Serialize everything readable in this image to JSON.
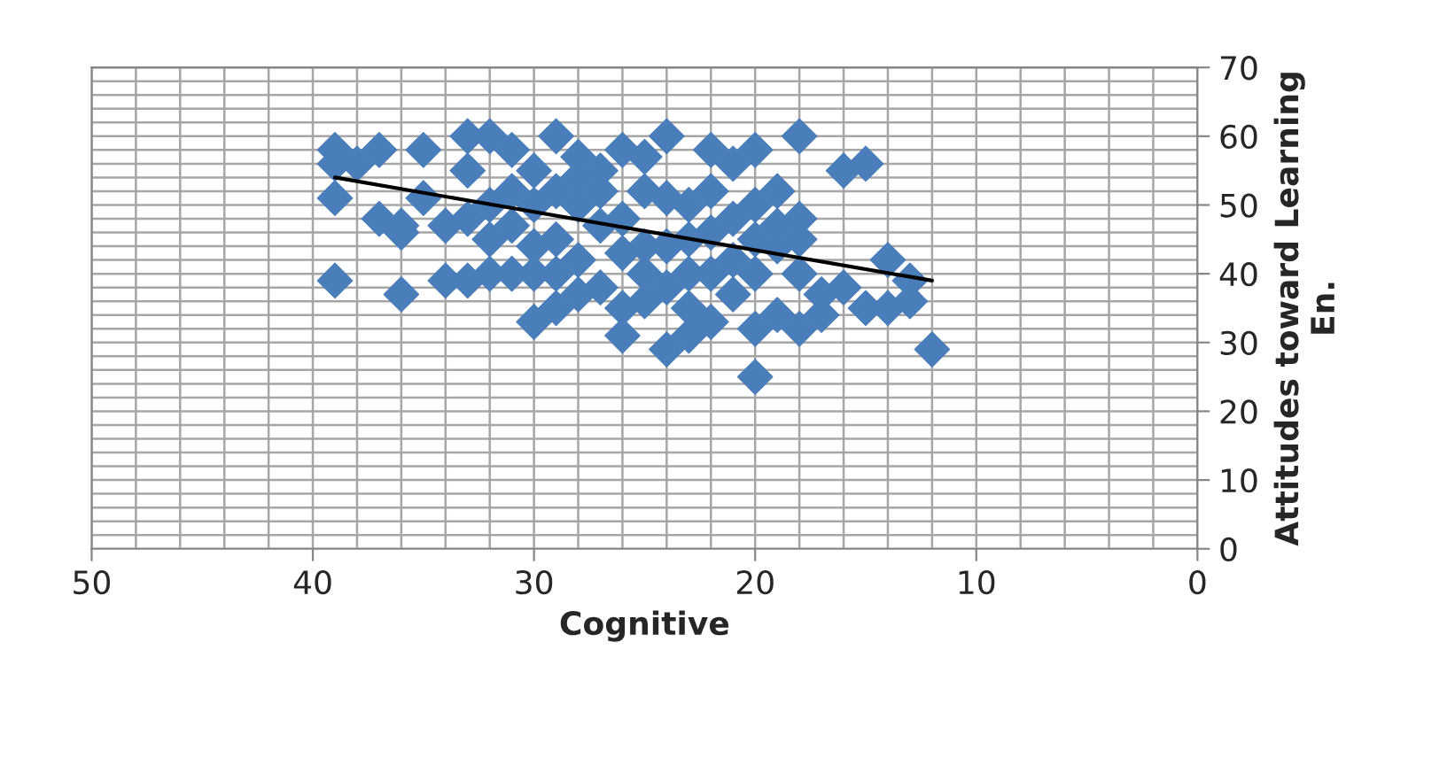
{
  "chart_data": {
    "type": "scatter",
    "xlabel": "Cognitive",
    "ylabel": "Attitudes toward Learning\nEn.",
    "xlim": [
      50,
      0
    ],
    "xticks": [
      50,
      40,
      30,
      20,
      10,
      0
    ],
    "ylim": [
      0,
      70
    ],
    "yticks": [
      0,
      10,
      20,
      30,
      40,
      50,
      60,
      70
    ],
    "grid": true,
    "legend": false,
    "series": [
      {
        "color": "#4a7ebb",
        "marker": "diamond",
        "x": [
          39,
          39,
          39,
          39,
          38,
          37,
          37,
          36,
          36,
          35,
          35,
          34,
          33,
          32,
          32,
          33,
          33,
          31,
          30,
          30,
          31,
          30,
          29,
          29,
          29,
          28,
          28,
          28,
          27,
          27,
          26,
          26,
          26,
          25,
          25,
          25,
          24,
          24,
          24,
          23,
          23,
          23,
          23,
          22,
          22,
          22,
          21,
          21,
          21,
          20,
          20,
          20,
          20,
          20,
          19,
          19,
          19,
          18,
          18,
          18,
          18,
          17,
          16,
          16,
          15,
          14,
          14,
          13,
          13,
          12,
          26,
          27,
          28,
          29,
          30,
          31,
          32,
          34,
          22,
          21,
          24,
          25,
          26,
          27,
          19,
          17,
          22,
          23,
          24,
          30,
          31,
          28,
          20,
          33,
          36,
          32,
          29,
          25,
          18,
          15
        ],
        "values": [
          58,
          56,
          51,
          39,
          56,
          58,
          48,
          46,
          37,
          58,
          51,
          47,
          39,
          40,
          60,
          60,
          55,
          40,
          40,
          33,
          58,
          55,
          60,
          52,
          45,
          57,
          50,
          42,
          55,
          38,
          35,
          31,
          48,
          57,
          44,
          36,
          60,
          51,
          29,
          50,
          40,
          31,
          35,
          58,
          46,
          33,
          56,
          42,
          37,
          58,
          50,
          40,
          32,
          25,
          52,
          44,
          34,
          60,
          48,
          45,
          32,
          37,
          38,
          55,
          56,
          42,
          35,
          39,
          36,
          29,
          58,
          47,
          37,
          40,
          50,
          47,
          45,
          39,
          52,
          48,
          38,
          52,
          43,
          52,
          47,
          34,
          40,
          45,
          44,
          44,
          52,
          54,
          45,
          48,
          47,
          50,
          35,
          40,
          40,
          35
        ]
      },
      {
        "type": "line",
        "color": "#000000",
        "x": [
          39,
          12
        ],
        "values": [
          54,
          39
        ]
      }
    ]
  }
}
